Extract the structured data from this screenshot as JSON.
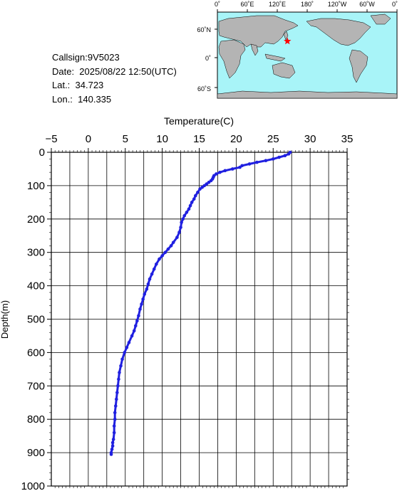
{
  "info": {
    "callsign": "Callsign:9V5023",
    "date": "Date:  2025/08/22 12:50(UTC)",
    "lat": "Lat.:  34.723",
    "lon": "Lon.:  140.335"
  },
  "map": {
    "lon_ticks": [
      "0˚",
      "60˚E",
      "120˚E",
      "180˚",
      "120˚W",
      "60˚W",
      "0˚"
    ],
    "lat_ticks": [
      "60˚N",
      "0˚",
      "60˚S"
    ],
    "ocean_color": "#a8f4f8",
    "land_color": "#b4b4b4",
    "marker": {
      "lat": 34.723,
      "lon": 140.335,
      "color": "#ff0000",
      "icon": "star-icon"
    }
  },
  "chart_data": {
    "type": "scatter",
    "title": "",
    "xlabel": "Temperature(C)",
    "ylabel": "Depth(m)",
    "xlim": [
      -5,
      35
    ],
    "ylim": [
      0,
      1000
    ],
    "x_axis_position": "top",
    "y_inverted": true,
    "grid": true,
    "x_ticks": [
      "−5",
      "0",
      "5",
      "10",
      "15",
      "20",
      "25",
      "30",
      "35"
    ],
    "y_ticks": [
      "0",
      "100",
      "200",
      "300",
      "400",
      "500",
      "600",
      "700",
      "800",
      "900",
      "1000"
    ],
    "color": "#2020e0",
    "series": [
      {
        "temperature": [
          27.3,
          27.1,
          26.6,
          25.8,
          25.0,
          24.0,
          22.8,
          21.8,
          20.8,
          20.5,
          19.5,
          18.5,
          17.8,
          17.3,
          17.0,
          16.9,
          16.8,
          16.6,
          16.3,
          16.0,
          15.7,
          15.4,
          15.1,
          14.8,
          14.5,
          14.3,
          14.0,
          13.8,
          13.6,
          13.3,
          13.0,
          12.8,
          12.6,
          12.5,
          12.3,
          12.0,
          11.5,
          11.2,
          10.8,
          10.4,
          10.0,
          9.6,
          9.2,
          8.9,
          8.6,
          8.3,
          8.1,
          7.9,
          7.6,
          7.4,
          7.2,
          7.0,
          6.8,
          6.6,
          6.4,
          6.2,
          5.9,
          5.5,
          5.2,
          4.9,
          4.6,
          4.4,
          4.2,
          4.1,
          4.0,
          3.9,
          3.8,
          3.7,
          3.6,
          3.6,
          3.5,
          3.5,
          3.4,
          3.3,
          3.3,
          3.2,
          3.1,
          3.1
        ],
        "depth": [
          0,
          5,
          10,
          15,
          20,
          25,
          30,
          35,
          40,
          45,
          50,
          55,
          60,
          65,
          70,
          75,
          80,
          85,
          90,
          95,
          100,
          105,
          110,
          120,
          130,
          140,
          150,
          160,
          170,
          180,
          190,
          200,
          210,
          225,
          240,
          255,
          270,
          280,
          290,
          300,
          310,
          320,
          335,
          350,
          365,
          380,
          395,
          410,
          425,
          440,
          455,
          470,
          490,
          505,
          520,
          535,
          550,
          570,
          585,
          600,
          620,
          640,
          660,
          680,
          700,
          720,
          740,
          760,
          780,
          800,
          820,
          840,
          860,
          870,
          880,
          890,
          900,
          905
        ]
      }
    ]
  }
}
